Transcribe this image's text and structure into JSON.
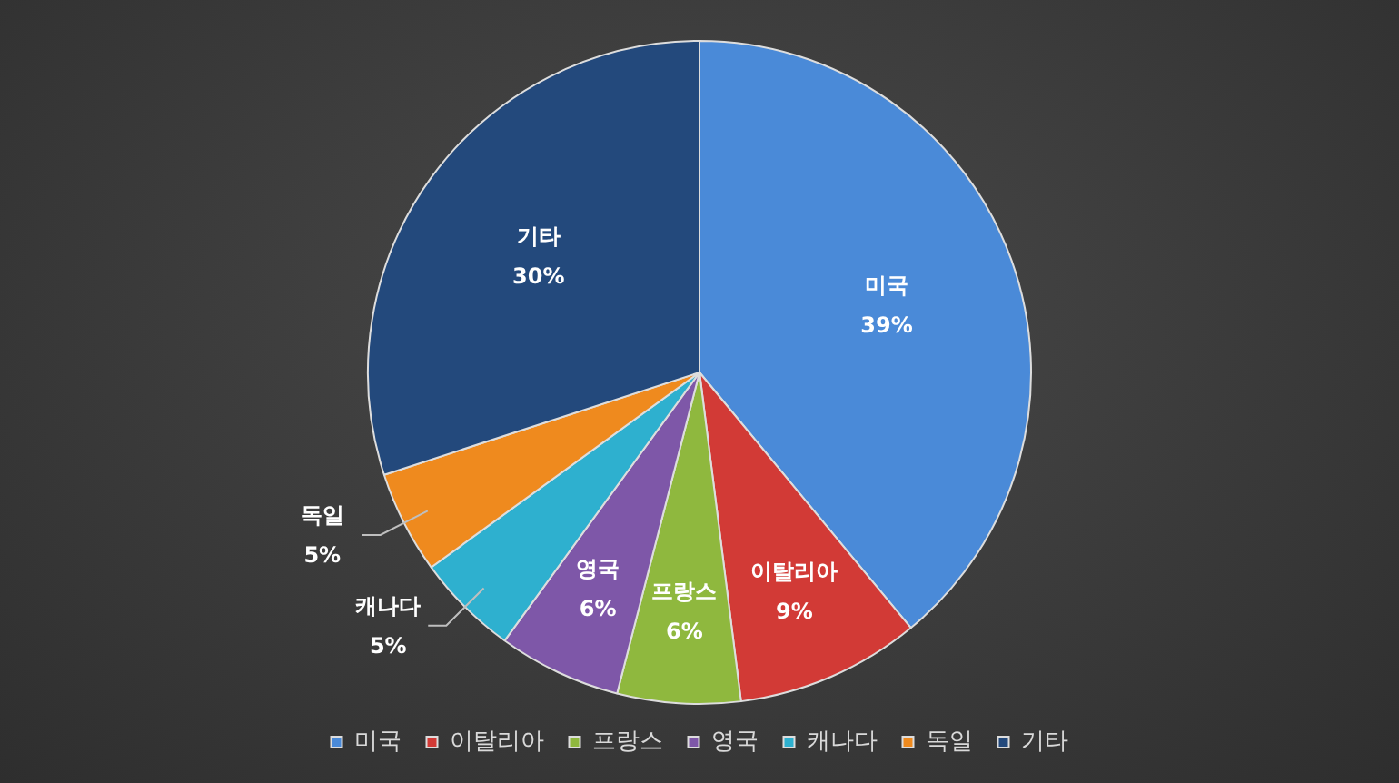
{
  "chart_data": {
    "type": "pie",
    "categories": [
      "미국",
      "이탈리아",
      "프랑스",
      "영국",
      "캐나다",
      "독일",
      "기타"
    ],
    "values": [
      39,
      9,
      6,
      6,
      5,
      5,
      30
    ],
    "value_labels": [
      "39%",
      "9%",
      "6%",
      "6%",
      "5%",
      "5%",
      "30%"
    ],
    "colors": [
      "#4a8ad8",
      "#d23a36",
      "#8fb83e",
      "#7e57a8",
      "#2eb0cf",
      "#ef8a1e",
      "#23497c"
    ],
    "legend": "bottom"
  }
}
